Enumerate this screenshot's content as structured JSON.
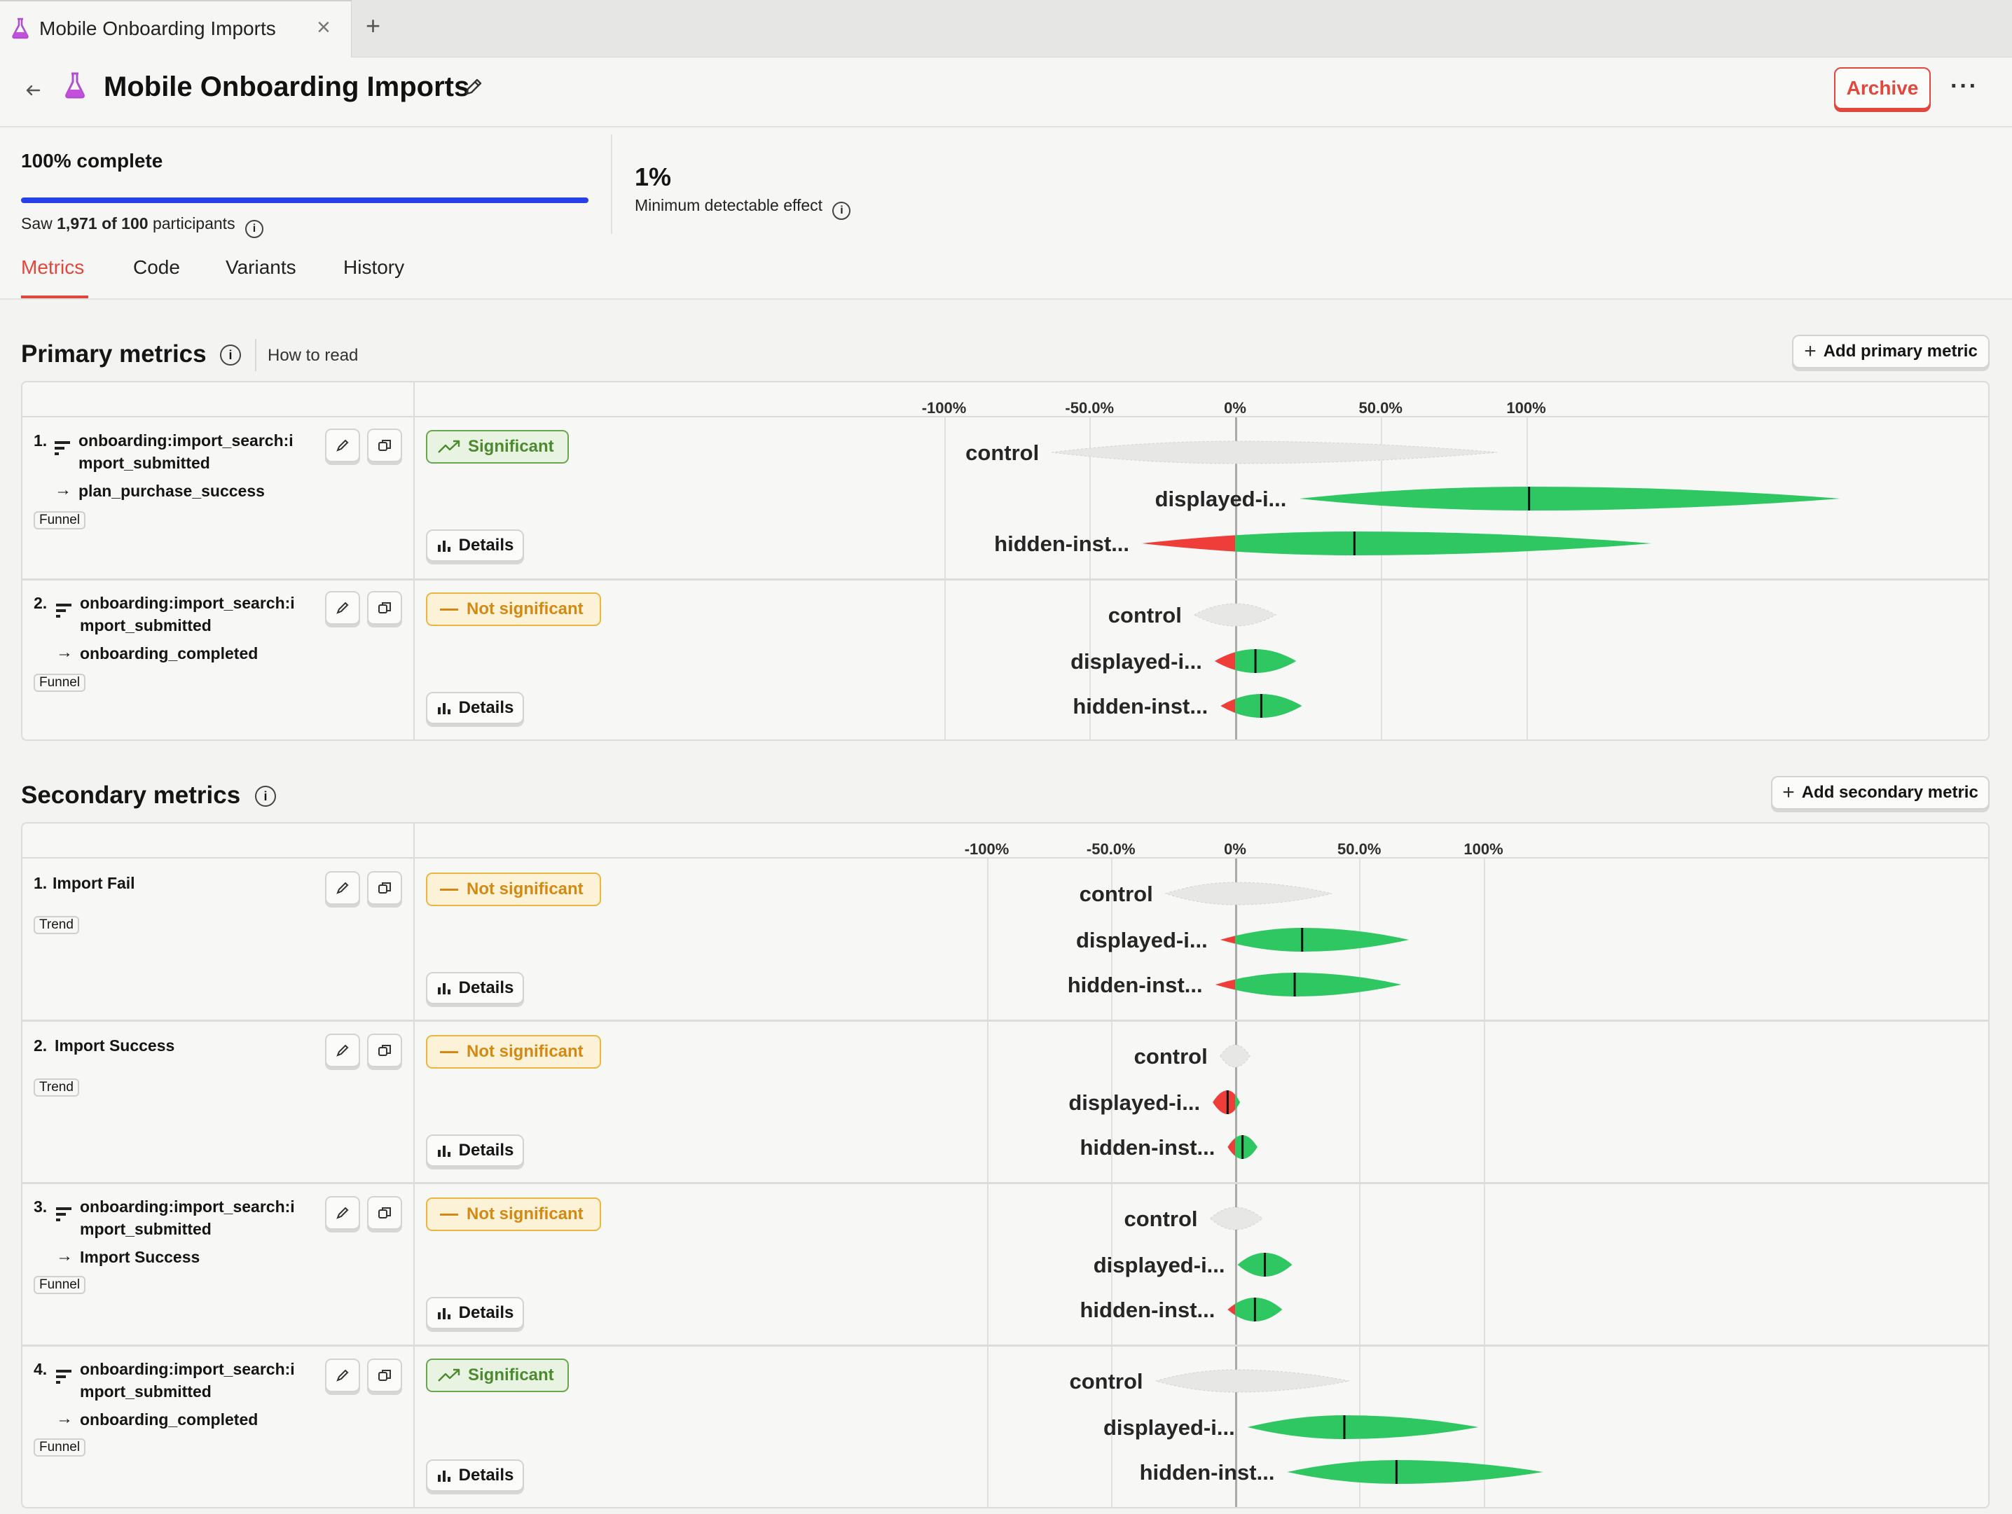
{
  "browser_tab": {
    "title": "Mobile Onboarding Imports",
    "close": "×",
    "new_tab": "+"
  },
  "header": {
    "title": "Mobile Onboarding Imports",
    "archive_label": "Archive",
    "more": "···"
  },
  "progress": {
    "label": "100% complete",
    "fraction": 1.0,
    "saw_prefix": "Saw ",
    "saw_bold": "1,971 of 100",
    "saw_suffix": " participants"
  },
  "mde": {
    "value": "1%",
    "label": "Minimum detectable effect"
  },
  "tabs": [
    {
      "label": "Metrics",
      "active": true
    },
    {
      "label": "Code"
    },
    {
      "label": "Variants"
    },
    {
      "label": "History"
    }
  ],
  "primary": {
    "title": "Primary metrics",
    "how_to_read": "How to read",
    "add_button": "Add primary metric",
    "axis_ticks": [
      "-100%",
      "-50.0%",
      "0%",
      "50.0%",
      "100%"
    ],
    "metrics": [
      {
        "num": "1.",
        "name_line1": "onboarding:import_search:i",
        "name_line2": "mport_submitted",
        "step": "plan_purchase_success",
        "tag": "Funnel",
        "status": "Significant"
      },
      {
        "num": "2.",
        "name_line1": "onboarding:import_search:i",
        "name_line2": "mport_submitted",
        "step": "onboarding_completed",
        "tag": "Funnel",
        "status": "Not significant"
      }
    ]
  },
  "secondary": {
    "title": "Secondary metrics",
    "add_button": "Add secondary metric",
    "axis_ticks": [
      "-100%",
      "-50.0%",
      "0%",
      "50.0%",
      "100%"
    ],
    "metrics": [
      {
        "num": "1.",
        "name": "Import Fail",
        "tag": "Trend",
        "status": "Not significant"
      },
      {
        "num": "2.",
        "name": "Import Success",
        "tag": "Trend",
        "status": "Not significant"
      },
      {
        "num": "3.",
        "name_line1": "onboarding:import_search:i",
        "name_line2": "mport_submitted",
        "step": "Import Success",
        "tag": "Funnel",
        "status": "Not significant"
      },
      {
        "num": "4.",
        "name_line1": "onboarding:import_search:i",
        "name_line2": "mport_submitted",
        "step": "onboarding_completed",
        "tag": "Funnel",
        "status": "Significant"
      }
    ]
  },
  "details_label": "Details",
  "variant_labels": [
    "control",
    "displayed-i...",
    "hidden-inst..."
  ],
  "colors": {
    "accent": "#e0483e",
    "progress": "#2840e8",
    "positive": "#2fc761",
    "negative": "#ef3e3a",
    "control": "#e7e7e6"
  },
  "chart_data": [
    {
      "type": "violin",
      "metric": "primary-1",
      "x_ticks": [
        "-100%",
        "-50.0%",
        "0%",
        "50.0%",
        "100%"
      ],
      "x_range_pct": [
        -100,
        100
      ],
      "series": [
        {
          "name": "control",
          "low": -63,
          "mid": 0,
          "high": 90
        },
        {
          "name": "displayed-i...",
          "low": 22,
          "mid": 101,
          "high": 208
        },
        {
          "name": "hidden-inst...",
          "low": -32,
          "mid": 41,
          "high": 143
        }
      ]
    },
    {
      "type": "violin",
      "metric": "primary-2",
      "x_ticks": [
        "-100%",
        "-50.0%",
        "0%",
        "50.0%",
        "100%"
      ],
      "x_range_pct": [
        -100,
        100
      ],
      "series": [
        {
          "name": "control",
          "low": -14,
          "mid": 0,
          "high": 14
        },
        {
          "name": "displayed-i...",
          "low": -7,
          "mid": 7,
          "high": 21
        },
        {
          "name": "hidden-inst...",
          "low": -5,
          "mid": 9,
          "high": 23
        }
      ]
    },
    {
      "type": "violin",
      "metric": "secondary-1",
      "x_ticks": [
        "-100%",
        "-50.0%",
        "0%",
        "50.0%",
        "100%"
      ],
      "x_range_pct": [
        -100,
        100
      ],
      "series": [
        {
          "name": "control",
          "low": -28,
          "mid": 0,
          "high": 39
        },
        {
          "name": "displayed-i...",
          "low": -6,
          "mid": 27,
          "high": 70
        },
        {
          "name": "hidden-inst...",
          "low": -8,
          "mid": 24,
          "high": 67
        }
      ]
    },
    {
      "type": "violin",
      "metric": "secondary-2",
      "x_ticks": [
        "-100%",
        "-50.0%",
        "0%",
        "50.0%",
        "100%"
      ],
      "x_range_pct": [
        -100,
        100
      ],
      "series": [
        {
          "name": "control",
          "low": -6,
          "mid": 0,
          "high": 6
        },
        {
          "name": "displayed-i...",
          "low": -9,
          "mid": -3,
          "high": 2
        },
        {
          "name": "hidden-inst...",
          "low": -3,
          "mid": 3,
          "high": 9
        }
      ]
    },
    {
      "type": "violin",
      "metric": "secondary-3",
      "x_ticks": [
        "-100%",
        "-50.0%",
        "0%",
        "50.0%",
        "100%"
      ],
      "x_range_pct": [
        -100,
        100
      ],
      "series": [
        {
          "name": "control",
          "low": -10,
          "mid": 0,
          "high": 11
        },
        {
          "name": "displayed-i...",
          "low": 1,
          "mid": 12,
          "high": 23
        },
        {
          "name": "hidden-inst...",
          "low": -3,
          "mid": 8,
          "high": 19
        }
      ]
    },
    {
      "type": "violin",
      "metric": "secondary-4",
      "x_ticks": [
        "-100%",
        "-50.0%",
        "0%",
        "50.0%",
        "100%"
      ],
      "x_range_pct": [
        -100,
        100
      ],
      "series": [
        {
          "name": "control",
          "low": -32,
          "mid": 0,
          "high": 46
        },
        {
          "name": "displayed-i...",
          "low": 5,
          "mid": 44,
          "high": 98
        },
        {
          "name": "hidden-inst...",
          "low": 21,
          "mid": 65,
          "high": 124
        }
      ]
    }
  ]
}
